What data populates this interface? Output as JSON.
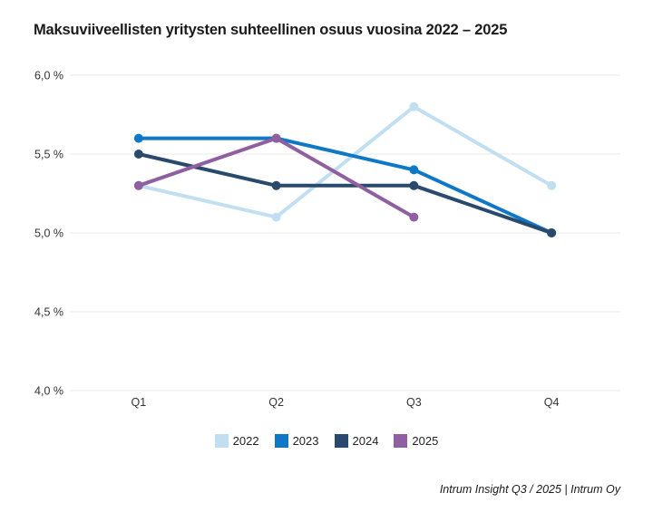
{
  "chart_data": {
    "type": "line",
    "title": "Maksuviiveellisten yritysten suhteellinen osuus vuosina 2022 – 2025",
    "categories": [
      "Q1",
      "Q2",
      "Q3",
      "Q4"
    ],
    "series": [
      {
        "name": "2022",
        "color": "#C2DFF2",
        "values": [
          5.3,
          5.1,
          5.8,
          5.3
        ]
      },
      {
        "name": "2023",
        "color": "#0F78C6",
        "values": [
          5.6,
          5.6,
          5.4,
          5.0
        ]
      },
      {
        "name": "2024",
        "color": "#294A6C",
        "values": [
          5.5,
          5.3,
          5.3,
          5.0
        ]
      },
      {
        "name": "2025",
        "color": "#8F5FA0",
        "values": [
          5.3,
          5.6,
          5.1,
          null
        ]
      }
    ],
    "xlabel": "",
    "ylabel": "",
    "ylim": [
      4.0,
      6.0
    ],
    "yticks": [
      {
        "value": 6.0,
        "label": "6,0 %"
      },
      {
        "value": 5.5,
        "label": "5,5 %"
      },
      {
        "value": 5.0,
        "label": "5,0 %"
      },
      {
        "value": 4.5,
        "label": "4,5 %"
      },
      {
        "value": 4.0,
        "label": "4,0 %"
      }
    ],
    "grid": "horizontal",
    "legend_position": "bottom",
    "marker": "circle"
  },
  "footer": {
    "source": "Intrum Insight Q3 / 2025 | Intrum Oy"
  },
  "style": {
    "background": "#FFFFFF",
    "grid_color": "#E8E8E8",
    "tick_color": "#333333",
    "title_color": "#1A1A1A"
  }
}
